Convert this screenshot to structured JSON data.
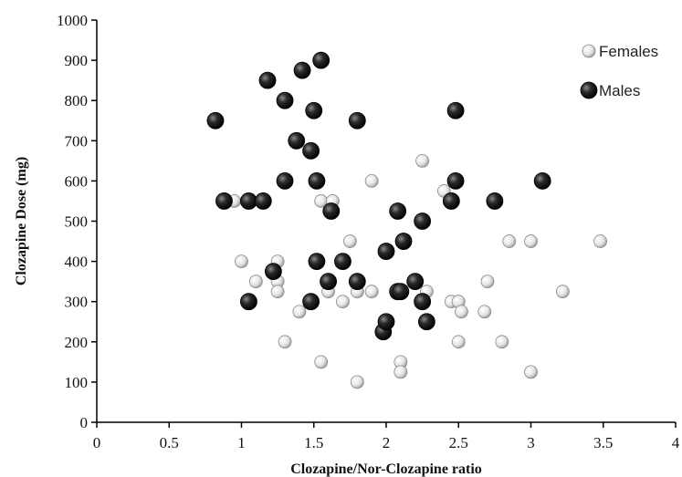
{
  "chart_data": {
    "type": "scatter",
    "title": "",
    "xlabel": "Clozapine/Nor-Clozapine ratio",
    "ylabel": "Clozapine Dose (mg)",
    "xlim": [
      0,
      4
    ],
    "ylim": [
      0,
      1000
    ],
    "x_ticks": [
      "0",
      "0.5",
      "1",
      "1.5",
      "2",
      "2.5",
      "3",
      "3.5",
      "4"
    ],
    "y_ticks": [
      "0",
      "100",
      "200",
      "300",
      "400",
      "500",
      "600",
      "700",
      "800",
      "900",
      "1000"
    ],
    "grid": false,
    "legend_position": "top-right",
    "series": [
      {
        "name": "Females",
        "color": "#e6e6e6",
        "points": [
          [
            0.95,
            550
          ],
          [
            1.0,
            400
          ],
          [
            1.1,
            350
          ],
          [
            1.25,
            400
          ],
          [
            1.25,
            350
          ],
          [
            1.25,
            325
          ],
          [
            1.3,
            200
          ],
          [
            1.4,
            275
          ],
          [
            1.55,
            550
          ],
          [
            1.55,
            150
          ],
          [
            1.6,
            325
          ],
          [
            1.63,
            550
          ],
          [
            1.7,
            300
          ],
          [
            1.75,
            450
          ],
          [
            1.8,
            325
          ],
          [
            1.8,
            100
          ],
          [
            1.9,
            600
          ],
          [
            1.9,
            325
          ],
          [
            2.1,
            150
          ],
          [
            2.1,
            125
          ],
          [
            2.25,
            650
          ],
          [
            2.28,
            325
          ],
          [
            2.4,
            575
          ],
          [
            2.45,
            300
          ],
          [
            2.5,
            300
          ],
          [
            2.5,
            200
          ],
          [
            2.52,
            275
          ],
          [
            2.68,
            275
          ],
          [
            2.7,
            350
          ],
          [
            2.8,
            200
          ],
          [
            2.85,
            450
          ],
          [
            3.0,
            450
          ],
          [
            3.0,
            125
          ],
          [
            3.22,
            325
          ],
          [
            3.48,
            450
          ]
        ]
      },
      {
        "name": "Males",
        "color": "#111111",
        "points": [
          [
            0.82,
            750
          ],
          [
            0.88,
            550
          ],
          [
            1.05,
            550
          ],
          [
            1.05,
            300
          ],
          [
            1.15,
            550
          ],
          [
            1.18,
            850
          ],
          [
            1.22,
            375
          ],
          [
            1.3,
            800
          ],
          [
            1.3,
            600
          ],
          [
            1.38,
            700
          ],
          [
            1.42,
            875
          ],
          [
            1.48,
            675
          ],
          [
            1.48,
            300
          ],
          [
            1.5,
            775
          ],
          [
            1.52,
            600
          ],
          [
            1.52,
            400
          ],
          [
            1.55,
            900
          ],
          [
            1.6,
            350
          ],
          [
            1.62,
            525
          ],
          [
            1.7,
            400
          ],
          [
            1.8,
            750
          ],
          [
            1.8,
            350
          ],
          [
            1.98,
            225
          ],
          [
            2.0,
            425
          ],
          [
            2.0,
            250
          ],
          [
            2.08,
            525
          ],
          [
            2.08,
            325
          ],
          [
            2.1,
            325
          ],
          [
            2.12,
            450
          ],
          [
            2.2,
            350
          ],
          [
            2.25,
            500
          ],
          [
            2.25,
            300
          ],
          [
            2.28,
            250
          ],
          [
            2.45,
            550
          ],
          [
            2.48,
            775
          ],
          [
            2.48,
            600
          ],
          [
            2.75,
            550
          ],
          [
            3.08,
            600
          ]
        ]
      }
    ]
  }
}
